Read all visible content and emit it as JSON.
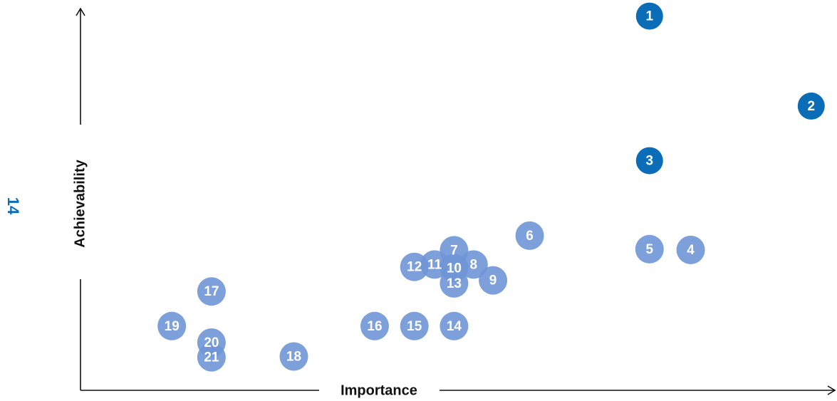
{
  "page_number": "14",
  "colors": {
    "primary": "#0b6db7",
    "secondary": "#6f95d6",
    "axis": "#111111",
    "point_label": "#ffffff"
  },
  "chart_data": {
    "type": "scatter",
    "title": "",
    "xlabel": "Importance",
    "ylabel": "Achievability",
    "xlim": [
      0,
      100
    ],
    "ylim": [
      0,
      100
    ],
    "grid": false,
    "legend": "none",
    "points": [
      {
        "label": "1",
        "x": 76.0,
        "y": 97.3,
        "group": "primary"
      },
      {
        "label": "2",
        "x": 97.6,
        "y": 73.9,
        "group": "primary"
      },
      {
        "label": "3",
        "x": 76.0,
        "y": 59.7,
        "group": "secondary_dark"
      },
      {
        "label": "4",
        "x": 81.5,
        "y": 36.5,
        "group": "secondary"
      },
      {
        "label": "5",
        "x": 76.0,
        "y": 36.7,
        "group": "secondary"
      },
      {
        "label": "6",
        "x": 60.0,
        "y": 40.2,
        "group": "secondary"
      },
      {
        "label": "7",
        "x": 49.9,
        "y": 36.4,
        "group": "secondary"
      },
      {
        "label": "8",
        "x": 52.5,
        "y": 32.7,
        "group": "secondary"
      },
      {
        "label": "9",
        "x": 55.1,
        "y": 28.6,
        "group": "secondary"
      },
      {
        "label": "10",
        "x": 49.9,
        "y": 31.8,
        "group": "secondary"
      },
      {
        "label": "11",
        "x": 47.3,
        "y": 32.7,
        "group": "secondary"
      },
      {
        "label": "12",
        "x": 44.6,
        "y": 32.1,
        "group": "secondary"
      },
      {
        "label": "13",
        "x": 49.9,
        "y": 27.8,
        "group": "secondary"
      },
      {
        "label": "14",
        "x": 49.9,
        "y": 16.7,
        "group": "secondary"
      },
      {
        "label": "15",
        "x": 44.6,
        "y": 16.7,
        "group": "secondary"
      },
      {
        "label": "16",
        "x": 39.3,
        "y": 16.7,
        "group": "secondary"
      },
      {
        "label": "17",
        "x": 17.5,
        "y": 25.7,
        "group": "secondary"
      },
      {
        "label": "18",
        "x": 28.5,
        "y": 8.8,
        "group": "secondary"
      },
      {
        "label": "19",
        "x": 12.2,
        "y": 16.7,
        "group": "secondary"
      },
      {
        "label": "20",
        "x": 17.5,
        "y": 12.4,
        "group": "secondary"
      },
      {
        "label": "21",
        "x": 17.5,
        "y": 8.6,
        "group": "secondary"
      }
    ]
  }
}
